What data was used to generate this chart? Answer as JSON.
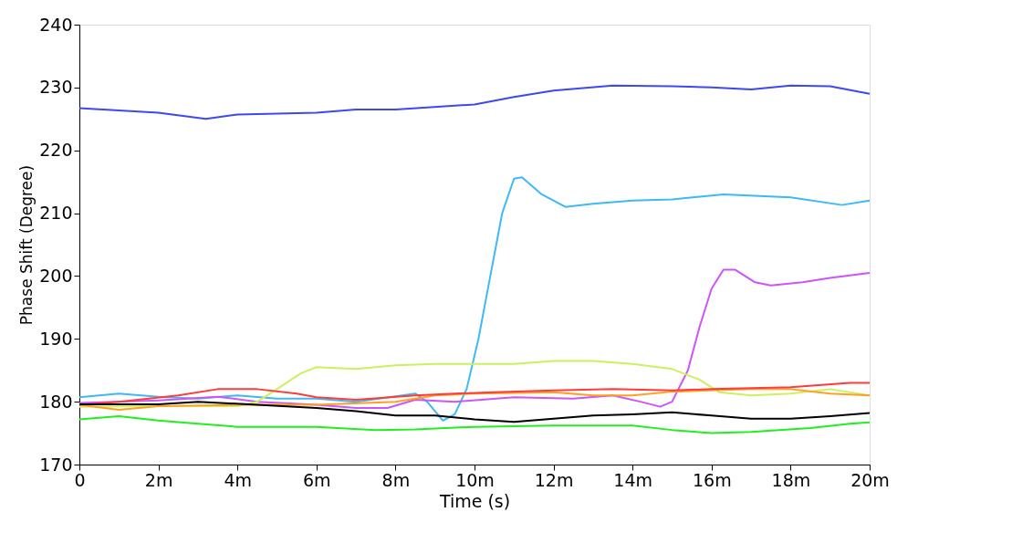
{
  "chart_data": {
    "type": "line",
    "xlabel": "Time (s)",
    "ylabel": "Phase Shift (Degree)",
    "xlim": [
      0,
      20
    ],
    "ylim": [
      170,
      240
    ],
    "xticks": [
      0,
      {
        "value": 2,
        "label": "2m"
      },
      {
        "value": 4,
        "label": "4m"
      },
      {
        "value": 6,
        "label": "6m"
      },
      {
        "value": 8,
        "label": "8m"
      },
      {
        "value": 10,
        "label": "10m"
      },
      {
        "value": 12,
        "label": "12m"
      },
      {
        "value": 14,
        "label": "14m"
      },
      {
        "value": 16,
        "label": "16m"
      },
      {
        "value": 18,
        "label": "18m"
      },
      {
        "value": 20,
        "label": "20m"
      }
    ],
    "yticks": [
      170,
      180,
      190,
      200,
      210,
      220,
      230,
      240
    ],
    "grid": false,
    "legend": false,
    "marker": "none",
    "line_style": "solid",
    "series": [
      {
        "color": "#3f48f0",
        "x": [
          0,
          2,
          3.2,
          4,
          6,
          7,
          8,
          10,
          11,
          12,
          13.5,
          15,
          16,
          17,
          18,
          19,
          20
        ],
        "values": [
          226.7,
          226,
          225,
          225.7,
          226,
          226.5,
          226.5,
          227.3,
          228.5,
          229.5,
          230.3,
          230.2,
          230,
          229.7,
          230.3,
          230.2,
          229
        ]
      },
      {
        "color": "#3fb8f5",
        "x": [
          0,
          1,
          2,
          3,
          4,
          5,
          6,
          7,
          8.5,
          8.8,
          9.2,
          9.5,
          9.8,
          10.1,
          10.4,
          10.7,
          11,
          11.2,
          11.7,
          12.3,
          13,
          14,
          15,
          16.3,
          18,
          19.3,
          20
        ],
        "values": [
          180.7,
          181.3,
          180.8,
          180.5,
          181,
          180.5,
          180.5,
          180,
          181.3,
          180,
          177,
          178,
          182,
          190,
          200,
          210,
          215.5,
          215.7,
          213,
          211,
          211.5,
          212,
          212.2,
          213,
          212.5,
          211.3,
          212
        ]
      },
      {
        "color": "#cc55f5",
        "x": [
          0,
          2,
          3.5,
          4.5,
          6,
          7,
          7.8,
          8.5,
          9.5,
          11,
          12.5,
          13.5,
          14.2,
          14.7,
          15,
          15.4,
          15.7,
          16,
          16.3,
          16.6,
          17.1,
          17.5,
          18.3,
          19,
          20
        ],
        "values": [
          179.8,
          180.2,
          180.8,
          180,
          179.5,
          179,
          179,
          180.3,
          180,
          180.7,
          180.5,
          181,
          180,
          179.2,
          180,
          185,
          192,
          198,
          201,
          201,
          199,
          198.5,
          199,
          199.7,
          200.5
        ]
      },
      {
        "color": "#ccf060",
        "x": [
          0,
          2,
          4,
          4.5,
          5,
          5.6,
          6,
          7,
          8,
          9,
          11,
          12,
          13,
          14,
          15,
          15.7,
          16.2,
          17,
          18,
          19,
          20
        ],
        "values": [
          179.2,
          179.3,
          179.3,
          180,
          182,
          184.5,
          185.5,
          185.2,
          185.8,
          186,
          186,
          186.5,
          186.5,
          186,
          185.2,
          183.5,
          181.5,
          181,
          181.3,
          182,
          181
        ]
      },
      {
        "color": "#ffa020",
        "x": [
          0,
          1,
          2,
          4,
          6,
          8,
          9,
          10,
          12,
          13,
          14,
          15,
          17,
          18,
          19,
          20
        ],
        "values": [
          179.5,
          178.7,
          179.3,
          179.5,
          179.5,
          180,
          181,
          181.3,
          181.5,
          181,
          181,
          181.6,
          182,
          182,
          181.3,
          181
        ]
      },
      {
        "color": "#ff3b3b",
        "x": [
          0,
          1,
          2.5,
          3.5,
          4.5,
          5.5,
          6,
          7,
          8.5,
          9.5,
          10.5,
          12,
          13.5,
          15,
          16,
          18,
          19.5,
          20
        ],
        "values": [
          179.5,
          180,
          181,
          182,
          182,
          181.3,
          180.7,
          180.3,
          181,
          181.3,
          181.5,
          181.8,
          182,
          181.8,
          182,
          182.3,
          183,
          183
        ]
      },
      {
        "color": "#000000",
        "x": [
          0,
          2,
          3,
          4.5,
          6,
          7,
          8,
          9,
          10,
          11,
          12,
          13,
          14,
          15,
          16,
          17,
          18,
          19,
          20
        ],
        "values": [
          179.6,
          179.6,
          180,
          179.5,
          179,
          178.5,
          177.8,
          177.8,
          177.2,
          176.8,
          177.3,
          177.8,
          178,
          178.3,
          177.8,
          177.3,
          177.3,
          177.7,
          178.2
        ]
      },
      {
        "color": "#22ee22",
        "x": [
          0,
          1,
          2,
          3,
          4,
          6,
          7.5,
          8.5,
          10,
          12,
          14,
          15,
          16,
          17,
          18.5,
          19.5,
          20
        ],
        "values": [
          177.2,
          177.7,
          177,
          176.5,
          176,
          176,
          175.5,
          175.6,
          176,
          176.2,
          176.2,
          175.5,
          175,
          175.2,
          175.8,
          176.5,
          176.7
        ]
      }
    ]
  }
}
